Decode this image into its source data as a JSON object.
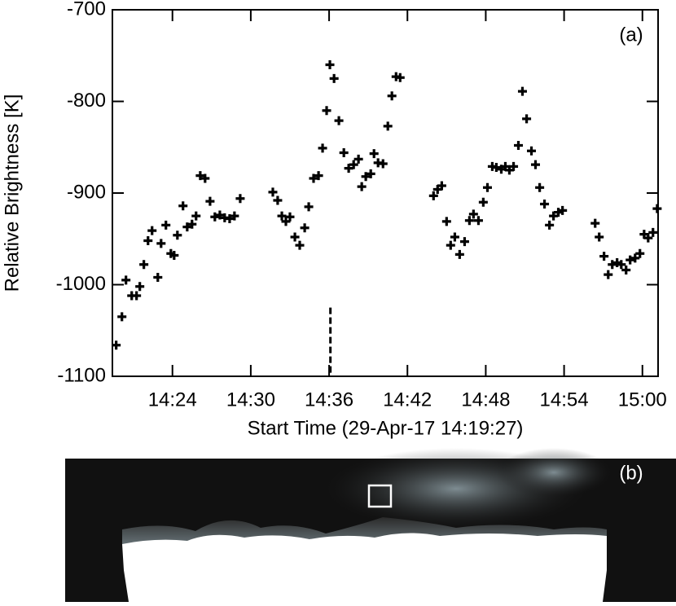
{
  "chart_data": {
    "type": "scatter",
    "panel_label": "(a)",
    "x_label": "Start Time (29-Apr-17 14:19:27)",
    "y_label": "Relative Brightness [K]",
    "color": "#000000",
    "xlim": [
      19.4,
      61.2
    ],
    "xticks": [
      {
        "value": 24,
        "label": "14:24"
      },
      {
        "value": 30,
        "label": "14:30"
      },
      {
        "value": 36,
        "label": "14:36"
      },
      {
        "value": 42,
        "label": "14:42"
      },
      {
        "value": 48,
        "label": "14:48"
      },
      {
        "value": 54,
        "label": "14:54"
      },
      {
        "value": 60,
        "label": "15:00"
      }
    ],
    "ylim": [
      -1100,
      -700
    ],
    "yticks": [
      -1100,
      -1000,
      -900,
      -800,
      -700
    ],
    "reference_line": {
      "x": 36.1,
      "y_top": -1025
    },
    "x": [
      19.69,
      20.13,
      20.44,
      20.88,
      21.25,
      21.5,
      21.81,
      22.13,
      22.44,
      22.88,
      23.13,
      23.5,
      23.88,
      24.13,
      24.38,
      24.81,
      25.13,
      25.5,
      25.81,
      26.13,
      26.5,
      26.88,
      27.25,
      27.63,
      28,
      28.38,
      28.75,
      29.19,
      31.69,
      32.06,
      32.38,
      32.69,
      33,
      33.38,
      33.75,
      34.13,
      34.44,
      34.81,
      35.19,
      35.5,
      35.81,
      36.06,
      36.38,
      36.75,
      37.13,
      37.5,
      37.88,
      38.25,
      38.5,
      38.81,
      39.19,
      39.44,
      39.75,
      40.13,
      40.5,
      40.81,
      41.13,
      41.44,
      44,
      44.31,
      44.63,
      45,
      45.31,
      45.63,
      46,
      46.38,
      46.75,
      47.06,
      47.44,
      47.81,
      48.13,
      48.5,
      48.81,
      49.19,
      49.5,
      49.81,
      50.13,
      50.5,
      50.81,
      51.13,
      51.5,
      51.81,
      52.13,
      52.5,
      52.88,
      53.19,
      53.56,
      53.88,
      56.38,
      56.69,
      57.06,
      57.38,
      57.69,
      58.06,
      58.38,
      58.75,
      59.06,
      59.44,
      59.81,
      60.13,
      60.44,
      60.81,
      61.13
    ],
    "values": [
      -1066,
      -1035,
      -995,
      -1012,
      -1012,
      -1002,
      -978,
      -952,
      -941,
      -992,
      -955,
      -935,
      -966,
      -968,
      -946,
      -914,
      -937,
      -934,
      -925,
      -881,
      -884,
      -909,
      -926,
      -924,
      -927,
      -928,
      -925,
      -906,
      -899,
      -908,
      -925,
      -931,
      -926,
      -948,
      -957,
      -938,
      -915,
      -884,
      -881,
      -851,
      -810,
      -760,
      -775,
      -821,
      -856,
      -873,
      -869,
      -863,
      -893,
      -882,
      -879,
      -857,
      -867,
      -868,
      -827,
      -794,
      -773,
      -774,
      -903,
      -896,
      -892,
      -931,
      -957,
      -948,
      -967,
      -953,
      -930,
      -923,
      -930,
      -910,
      -894,
      -871,
      -872,
      -874,
      -871,
      -875,
      -871,
      -848,
      -789,
      -819,
      -854,
      -869,
      -894,
      -912,
      -935,
      -925,
      -921,
      -919,
      -933,
      -948,
      -969,
      -989,
      -978,
      -976,
      -978,
      -984,
      -973,
      -971,
      -966,
      -945,
      -949,
      -943,
      -917
    ]
  },
  "image_panel": {
    "label": "(b)"
  }
}
